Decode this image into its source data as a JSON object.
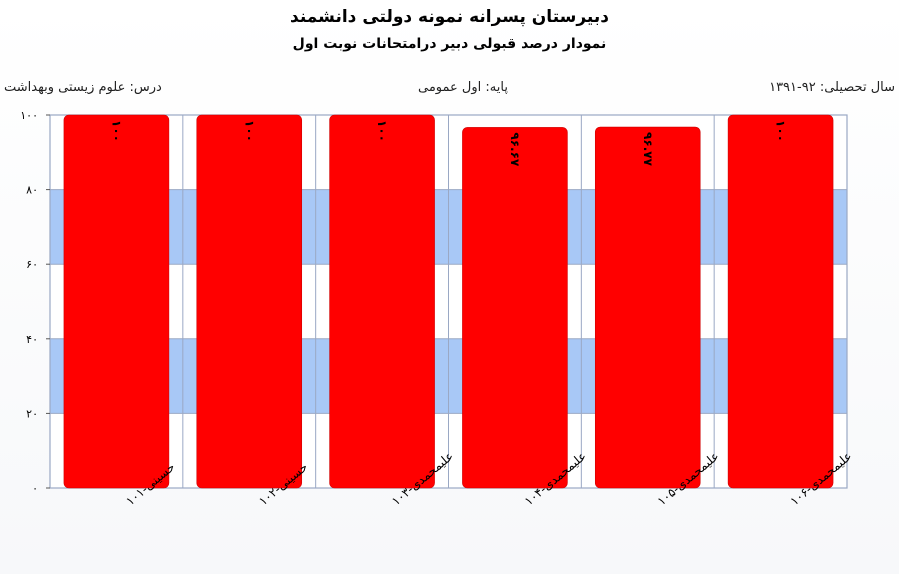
{
  "header": {
    "title": "دبیرستان پسرانه نمونه دولتی دانشمند",
    "subtitle": "نمودار درصد قبولی دبیر درامتحانات نوبت اول"
  },
  "info": {
    "year": "سال تحصیلی: ۹۲-۱۳۹۱",
    "grade": "پایه: اول عمومی",
    "subject": "درس: علوم زیستی وبهداشت"
  },
  "colors": {
    "bar": "#ff0000",
    "band": "#a8c8f6",
    "axis": "#9aa8c4"
  },
  "chart_data": {
    "type": "bar",
    "categories": [
      "حسینی-۱۰۱",
      "حسینی-۱۰۲",
      "علیمحمدی-۱۰۳",
      "علیمحمدی-۱۰۴",
      "علیمحمدی-۱۰۵",
      "علیمحمدی-۱۰۶"
    ],
    "values": [
      100,
      100,
      100,
      96.67,
      96.77,
      100
    ],
    "value_labels": [
      "۱۰۰",
      "۱۰۰",
      "۱۰۰",
      "۹۶.۶۷",
      "۹۶.۷۷",
      "۱۰۰"
    ],
    "ylim": [
      0,
      100
    ],
    "yticks": [
      0,
      20,
      40,
      60,
      80,
      100
    ],
    "ytick_labels": [
      "۰",
      "۲۰",
      "۴۰",
      "۶۰",
      "۸۰",
      "۱۰۰"
    ],
    "grid": true
  }
}
